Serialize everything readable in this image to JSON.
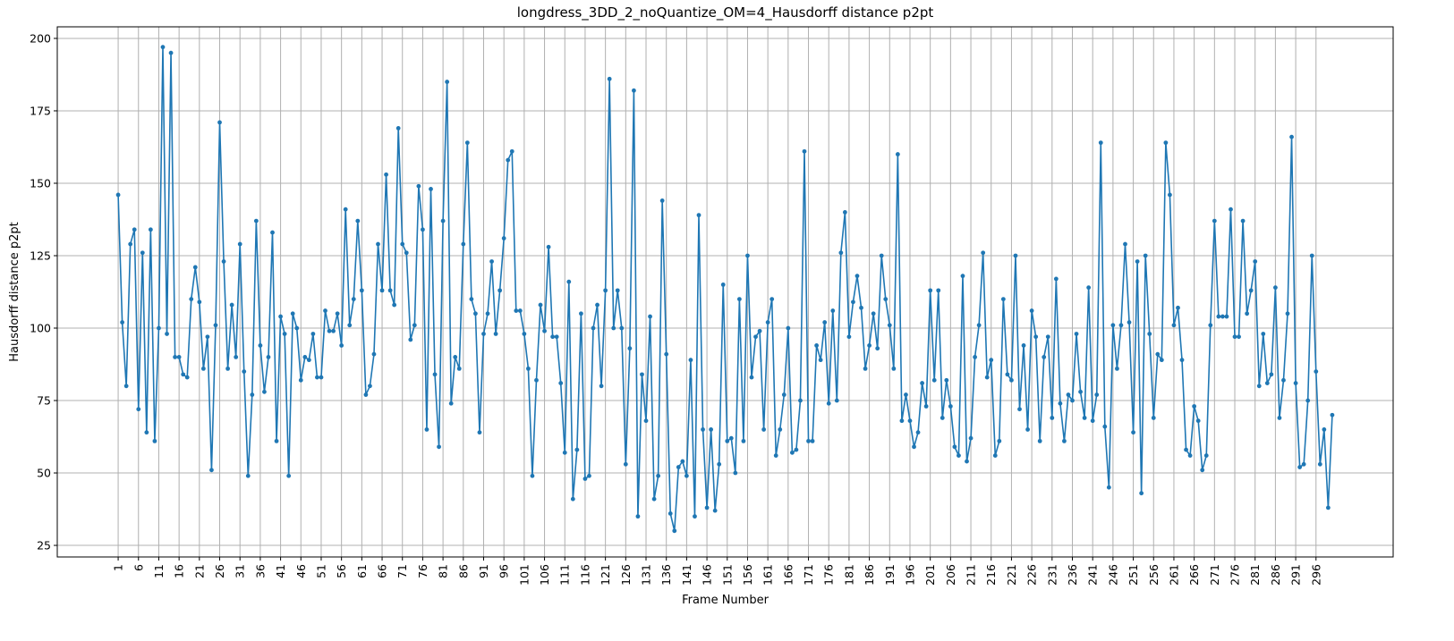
{
  "chart_data": {
    "type": "line",
    "title": "longdress_3DD_2_noQuantize_OM=4_Hausdorff distance p2pt",
    "xlabel": "Frame Number",
    "ylabel": "Hausdorff distance p2pt",
    "xlim": [
      -14,
      315
    ],
    "ylim": [
      21,
      204
    ],
    "grid": true,
    "legend": "none",
    "line_color": "#1f77b4",
    "x_ticks": [
      "1",
      "6",
      "11",
      "16",
      "21",
      "26",
      "31",
      "36",
      "41",
      "46",
      "51",
      "56",
      "61",
      "66",
      "71",
      "76",
      "81",
      "86",
      "91",
      "96",
      "101",
      "106",
      "111",
      "116",
      "121",
      "126",
      "131",
      "136",
      "141",
      "146",
      "151",
      "156",
      "161",
      "166",
      "171",
      "176",
      "181",
      "186",
      "191",
      "196",
      "201",
      "206",
      "211",
      "216",
      "221",
      "226",
      "231",
      "236",
      "241",
      "246",
      "251",
      "256",
      "261",
      "266",
      "271",
      "276",
      "281",
      "286",
      "291",
      "296"
    ],
    "y_ticks": [
      "25",
      "50",
      "75",
      "100",
      "125",
      "150",
      "175",
      "200"
    ],
    "series": [
      {
        "start_frame": 1,
        "values": [
          146,
          102,
          80,
          129,
          134,
          72,
          126,
          64,
          134,
          61,
          100,
          197,
          98,
          195,
          90,
          90,
          84,
          83,
          110,
          121,
          109,
          86,
          97,
          51,
          101,
          171,
          123,
          86,
          108,
          90,
          129,
          85,
          49,
          77,
          137,
          94,
          78,
          90,
          133,
          61,
          104,
          98,
          49,
          105,
          100,
          82,
          90,
          89,
          98,
          83,
          83,
          106,
          99,
          99,
          105,
          94,
          141,
          101,
          110,
          137,
          113,
          77,
          80,
          91,
          129,
          113,
          153,
          113,
          108,
          169,
          129,
          126,
          96,
          101,
          149,
          134,
          65,
          148,
          84,
          59,
          137,
          185,
          74,
          90,
          86,
          129,
          164,
          110,
          105,
          64,
          98,
          105,
          123,
          98,
          113,
          131,
          158,
          161,
          106,
          106,
          98,
          86,
          49,
          82,
          108,
          99,
          128,
          97,
          97,
          81,
          57,
          116,
          41,
          58,
          105,
          48,
          49,
          100,
          108,
          80,
          113,
          186,
          100,
          113,
          100,
          53,
          93,
          182,
          35,
          84,
          68,
          104,
          41,
          49,
          144,
          91,
          36,
          30,
          52,
          54,
          49,
          89,
          35,
          139,
          65,
          38,
          65,
          37,
          53,
          115,
          61,
          62,
          50,
          110,
          61,
          125,
          83,
          97,
          99,
          65,
          102,
          110,
          56,
          65,
          77,
          100,
          57,
          58,
          75,
          161,
          61,
          61,
          94,
          89,
          102,
          74,
          106,
          75,
          126,
          140,
          97,
          109,
          118,
          107,
          86,
          94,
          105,
          93,
          125,
          110,
          101,
          86,
          160,
          68,
          77,
          68,
          59,
          64,
          81,
          73,
          113,
          82,
          113,
          69,
          82,
          73,
          59,
          56,
          118,
          54,
          62,
          90,
          101,
          126,
          83,
          89,
          56,
          61,
          110,
          84,
          82,
          125,
          72,
          94,
          65,
          106,
          97,
          61,
          90,
          97,
          69,
          117,
          74,
          61,
          77,
          75,
          98,
          78,
          69,
          114,
          68,
          77,
          164,
          66,
          45,
          101,
          86,
          101,
          129,
          102,
          64,
          123,
          43,
          125,
          98,
          69,
          91,
          89,
          164,
          146,
          101,
          107,
          89,
          58,
          56,
          73,
          68,
          51,
          56,
          101,
          137,
          104,
          104,
          104,
          141,
          97,
          97,
          137,
          105,
          113,
          123,
          80,
          98,
          81,
          84,
          114,
          69,
          82,
          105,
          166,
          81,
          52,
          53,
          75,
          125,
          85,
          53,
          65,
          38,
          70
        ]
      }
    ]
  }
}
